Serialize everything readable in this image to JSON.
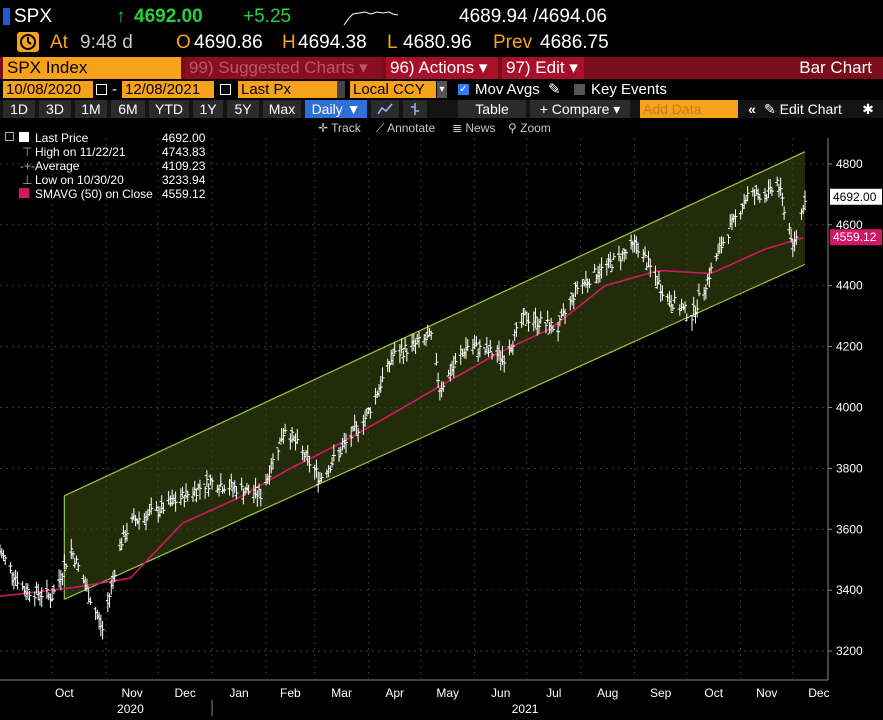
{
  "quote": {
    "ticker": "SPX",
    "arrow": "↑",
    "last": "4692.00",
    "change": "+5.25",
    "bid_ask": "4689.94 /4694.06",
    "time_label": "At",
    "time": "9:48 d",
    "open_label": "O",
    "open": "4690.86",
    "high_label": "H",
    "high": "4694.38",
    "low_label": "L",
    "low": "4680.96",
    "prev_label": "Prev",
    "prev": "4686.75"
  },
  "menu": {
    "security": "SPX Index",
    "suggested": "99) Suggested Charts ▾",
    "actions": "96) Actions ▾",
    "edit": "97) Edit ▾",
    "title": "Bar Chart"
  },
  "controls": {
    "start_date": "10/08/2020",
    "dash": "-",
    "end_date": "12/08/2021",
    "price_field": "Last Px",
    "currency": "Local CCY",
    "mov_avgs": "Mov Avgs",
    "key_events": "Key Events"
  },
  "periods": [
    "1D",
    "3D",
    "1M",
    "6M",
    "YTD",
    "1Y",
    "5Y",
    "Max"
  ],
  "toolbar": {
    "frequency": "Daily ▼",
    "table": "Table",
    "compare": "+ Compare ▾",
    "add_data_placeholder": "Add Data",
    "edit_chart": "Edit Chart",
    "track": "Track",
    "annotate": "Annotate",
    "news": "News",
    "zoom": "Zoom"
  },
  "legend": [
    {
      "label": "Last Price",
      "value": "4692.00"
    },
    {
      "label": "High on 11/22/21",
      "value": "4743.83"
    },
    {
      "label": "Average",
      "value": "4109.23"
    },
    {
      "label": "Low on 10/30/20",
      "value": "3233.94"
    },
    {
      "label": "SMAVG (50)  on Close",
      "value": "4559.12"
    }
  ],
  "colors": {
    "accent": "#f7a21b",
    "menubar": "#7a0d1a",
    "quote_up": "#27d13d",
    "channel": "#9bc53d",
    "sma": "#d11868",
    "bars": "#ffffff"
  },
  "chart_data": {
    "type": "bar",
    "y_ticks": [
      3200,
      3400,
      3600,
      3800,
      4000,
      4200,
      4400,
      4600,
      4800
    ],
    "ylim": [
      3105,
      4885
    ],
    "x_month_labels": [
      "Oct",
      "Nov",
      "Dec",
      "Jan",
      "Feb",
      "Mar",
      "Apr",
      "May",
      "Jun",
      "Jul",
      "Aug",
      "Sep",
      "Oct",
      "Nov",
      "Dec"
    ],
    "x_year_labels": [
      "2020",
      "2021"
    ],
    "last_price_tag": "4692.00",
    "sma_tag": "4559.12",
    "price_series": [
      {
        "date": "2020-09-01",
        "close": 3526
      },
      {
        "date": "2020-09-15",
        "close": 3401
      },
      {
        "date": "2020-10-01",
        "close": 3380
      },
      {
        "date": "2020-10-12",
        "close": 3534
      },
      {
        "date": "2020-10-30",
        "close": 3270
      },
      {
        "date": "2020-11-09",
        "close": 3550
      },
      {
        "date": "2020-11-16",
        "close": 3626
      },
      {
        "date": "2020-12-01",
        "close": 3662
      },
      {
        "date": "2020-12-31",
        "close": 3756
      },
      {
        "date": "2021-01-29",
        "close": 3714
      },
      {
        "date": "2021-02-12",
        "close": 3934
      },
      {
        "date": "2021-03-04",
        "close": 3768
      },
      {
        "date": "2021-03-31",
        "close": 3973
      },
      {
        "date": "2021-04-15",
        "close": 4170
      },
      {
        "date": "2021-05-07",
        "close": 4232
      },
      {
        "date": "2021-05-12",
        "close": 4063
      },
      {
        "date": "2021-05-28",
        "close": 4204
      },
      {
        "date": "2021-06-18",
        "close": 4166
      },
      {
        "date": "2021-06-30",
        "close": 4297
      },
      {
        "date": "2021-07-19",
        "close": 4258
      },
      {
        "date": "2021-07-30",
        "close": 4395
      },
      {
        "date": "2021-08-27",
        "close": 4509
      },
      {
        "date": "2021-09-02",
        "close": 4537
      },
      {
        "date": "2021-09-20",
        "close": 4358
      },
      {
        "date": "2021-10-04",
        "close": 4300
      },
      {
        "date": "2021-10-22",
        "close": 4545
      },
      {
        "date": "2021-11-05",
        "close": 4697
      },
      {
        "date": "2021-11-18",
        "close": 4704
      },
      {
        "date": "2021-11-22",
        "close": 4743
      },
      {
        "date": "2021-11-30",
        "close": 4567
      },
      {
        "date": "2021-12-01",
        "close": 4513
      },
      {
        "date": "2021-12-08",
        "close": 4692
      }
    ],
    "sma_series": [
      {
        "date": "2020-09-01",
        "value": 3380
      },
      {
        "date": "2020-10-15",
        "value": 3410
      },
      {
        "date": "2020-11-15",
        "value": 3440
      },
      {
        "date": "2020-12-15",
        "value": 3620
      },
      {
        "date": "2021-01-15",
        "value": 3700
      },
      {
        "date": "2021-02-15",
        "value": 3800
      },
      {
        "date": "2021-03-15",
        "value": 3880
      },
      {
        "date": "2021-04-15",
        "value": 3980
      },
      {
        "date": "2021-05-15",
        "value": 4080
      },
      {
        "date": "2021-06-15",
        "value": 4180
      },
      {
        "date": "2021-07-15",
        "value": 4260
      },
      {
        "date": "2021-08-15",
        "value": 4400
      },
      {
        "date": "2021-09-15",
        "value": 4450
      },
      {
        "date": "2021-10-15",
        "value": 4440
      },
      {
        "date": "2021-11-15",
        "value": 4520
      },
      {
        "date": "2021-12-08",
        "value": 4559
      }
    ],
    "channel": {
      "start_date": "2020-10-08",
      "end_date": "2021-12-08",
      "upper_start": 3710,
      "upper_end": 4840,
      "lower_start": 3370,
      "lower_end": 4470
    }
  }
}
